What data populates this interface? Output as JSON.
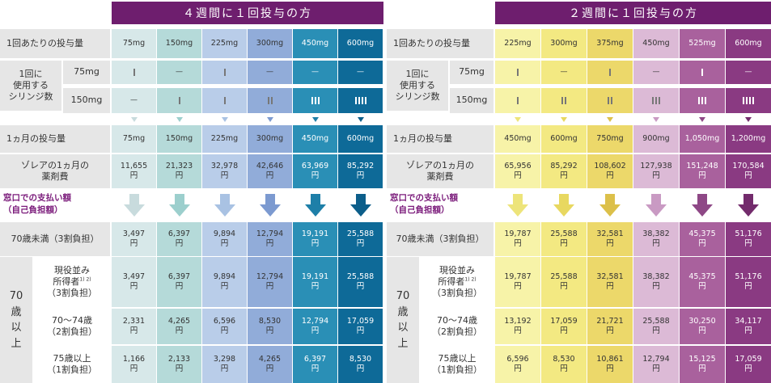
{
  "left": {
    "header": "４週間に１回投与の方",
    "doses": [
      "75mg",
      "150mg",
      "225mg",
      "300mg",
      "450mg",
      "600mg"
    ],
    "syr75": [
      1,
      0,
      1,
      0,
      0,
      0
    ],
    "syr150": [
      0,
      1,
      1,
      2,
      3,
      4
    ],
    "monthly_dose": [
      "75mg",
      "150mg",
      "225mg",
      "300mg",
      "450mg",
      "600mg"
    ],
    "drug_cost": [
      "11,655",
      "21,323",
      "32,978",
      "42,646",
      "63,969",
      "85,292"
    ],
    "pay_u70": [
      "3,497",
      "6,397",
      "9,894",
      "12,794",
      "19,191",
      "25,588"
    ],
    "pay_genekinami": [
      "3,497",
      "6,397",
      "9,894",
      "12,794",
      "19,191",
      "25,588"
    ],
    "pay_70_74": [
      "2,331",
      "4,265",
      "6,596",
      "8,530",
      "12,794",
      "17,059"
    ],
    "pay_75": [
      "1,166",
      "2,133",
      "3,298",
      "4,265",
      "6,397",
      "8,530"
    ],
    "colors": [
      "#d7e8e9",
      "#b5dad9",
      "#b9cde9",
      "#91acd9",
      "#2a8fb6",
      "#0e6a98"
    ],
    "textColors": [
      "#333",
      "#333",
      "#333",
      "#333",
      "#fff",
      "#fff"
    ],
    "triColors": [
      "#c8dbdd",
      "#9ccfcd",
      "#a9c2e3",
      "#7c9ad0",
      "#1e7fa8",
      "#0c5e8a"
    ]
  },
  "right": {
    "header": "２週間に１回投与の方",
    "doses": [
      "225mg",
      "300mg",
      "375mg",
      "450mg",
      "525mg",
      "600mg"
    ],
    "syr75": [
      1,
      0,
      1,
      0,
      1,
      0
    ],
    "syr150": [
      1,
      2,
      2,
      3,
      3,
      4
    ],
    "monthly_dose": [
      "450mg",
      "600mg",
      "750mg",
      "900mg",
      "1,050mg",
      "1,200mg"
    ],
    "drug_cost": [
      "65,956",
      "85,292",
      "108,602",
      "127,938",
      "151,248",
      "170,584"
    ],
    "pay_u70": [
      "19,787",
      "25,588",
      "32,581",
      "38,382",
      "45,375",
      "51,176"
    ],
    "pay_genekinami": [
      "19,787",
      "25,588",
      "32,581",
      "38,382",
      "45,375",
      "51,176"
    ],
    "pay_70_74": [
      "13,192",
      "17,059",
      "21,721",
      "25,588",
      "30,250",
      "34,117"
    ],
    "pay_75": [
      "6,596",
      "8,530",
      "10,861",
      "12,794",
      "15,125",
      "17,059"
    ],
    "colors": [
      "#f7f3a8",
      "#f3e982",
      "#ecd86a",
      "#dcbad6",
      "#a9619d",
      "#8a3a82"
    ],
    "textColors": [
      "#333",
      "#333",
      "#333",
      "#333",
      "#fff",
      "#fff"
    ],
    "triColors": [
      "#ede47a",
      "#e8d860",
      "#dcc04a",
      "#c99ac3",
      "#8e4886",
      "#732b6c"
    ]
  },
  "labels": {
    "per_dose": "1回あたりの投与量",
    "per_use_1": "1回に",
    "per_use_2": "使用する",
    "per_use_3": "シリンジ数",
    "mg75": "75mg",
    "mg150": "150mg",
    "monthly": "1ヵ月の投与量",
    "drug_1": "ゾレアの1ヵ月の",
    "drug_2": "薬剤費",
    "pay_1": "窓口での支払い額",
    "pay_2": "（自己負担額）",
    "under70": "70歳未満（3割負担）",
    "over70_1": "70",
    "over70_2": "歳",
    "over70_3": "以",
    "over70_4": "上",
    "genekinami_1": "現役並み",
    "genekinami_2": "所得者",
    "genekinami_sup": "1) 2)",
    "genekinami_3": "（3割負担）",
    "a70_74_1": "70～74歳",
    "a70_74_2": "（2割負担）",
    "a75_1": "75歳以上",
    "a75_2": "（1割負担）",
    "yen": "円",
    "dash": "—"
  }
}
